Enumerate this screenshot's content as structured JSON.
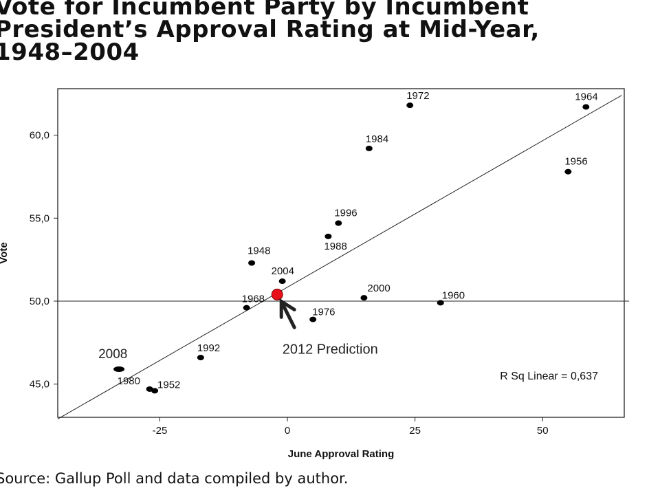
{
  "title_lines": [
    "Vote for Incumbent Party by Incumbent",
    "President’s Approval Rating at Mid-Year,",
    "1948–2004"
  ],
  "source": "Source: Gallup Poll and data compiled by author.",
  "chart_data": {
    "type": "scatter",
    "xlabel": "June Approval Rating",
    "ylabel": "Vote",
    "xlim": [
      -45,
      66
    ],
    "ylim": [
      43,
      62.8
    ],
    "xticks": [
      -25,
      0,
      25,
      50
    ],
    "xtick_labels": [
      "-25",
      "0",
      "25",
      "50"
    ],
    "yticks": [
      45,
      50,
      55,
      60
    ],
    "ytick_labels": [
      "45,0",
      "50,0",
      "55,0",
      "60,0"
    ],
    "points": [
      {
        "label": "1948",
        "x": -7,
        "y": 52.3
      },
      {
        "label": "1952",
        "x": -26,
        "y": 44.6
      },
      {
        "label": "1956",
        "x": 55,
        "y": 57.8
      },
      {
        "label": "1960",
        "x": 30,
        "y": 49.9
      },
      {
        "label": "1964",
        "x": 58.5,
        "y": 61.7
      },
      {
        "label": "1968",
        "x": -8,
        "y": 49.6
      },
      {
        "label": "1972",
        "x": 24,
        "y": 61.8
      },
      {
        "label": "1976",
        "x": 5,
        "y": 48.9
      },
      {
        "label": "1980",
        "x": -27,
        "y": 44.7
      },
      {
        "label": "1984",
        "x": 16,
        "y": 59.2
      },
      {
        "label": "1988",
        "x": 8,
        "y": 53.9
      },
      {
        "label": "1992",
        "x": -17,
        "y": 46.6
      },
      {
        "label": "1996",
        "x": 10,
        "y": 54.7
      },
      {
        "label": "2000",
        "x": 15,
        "y": 50.2
      },
      {
        "label": "2004",
        "x": -1,
        "y": 51.2
      },
      {
        "label": "2008",
        "x": -33,
        "y": 45.9
      }
    ],
    "highlight_point": {
      "label": "2012 Prediction",
      "x": -2,
      "y": 50.4,
      "color": "#e8111b"
    },
    "reference_line": {
      "y": 50
    },
    "fit_line": {
      "x1": -45,
      "y1": 42.9,
      "x2": 65.5,
      "y2": 62.4
    },
    "r_squared_label": "R Sq Linear = 0,637",
    "point_color": "#000000"
  }
}
